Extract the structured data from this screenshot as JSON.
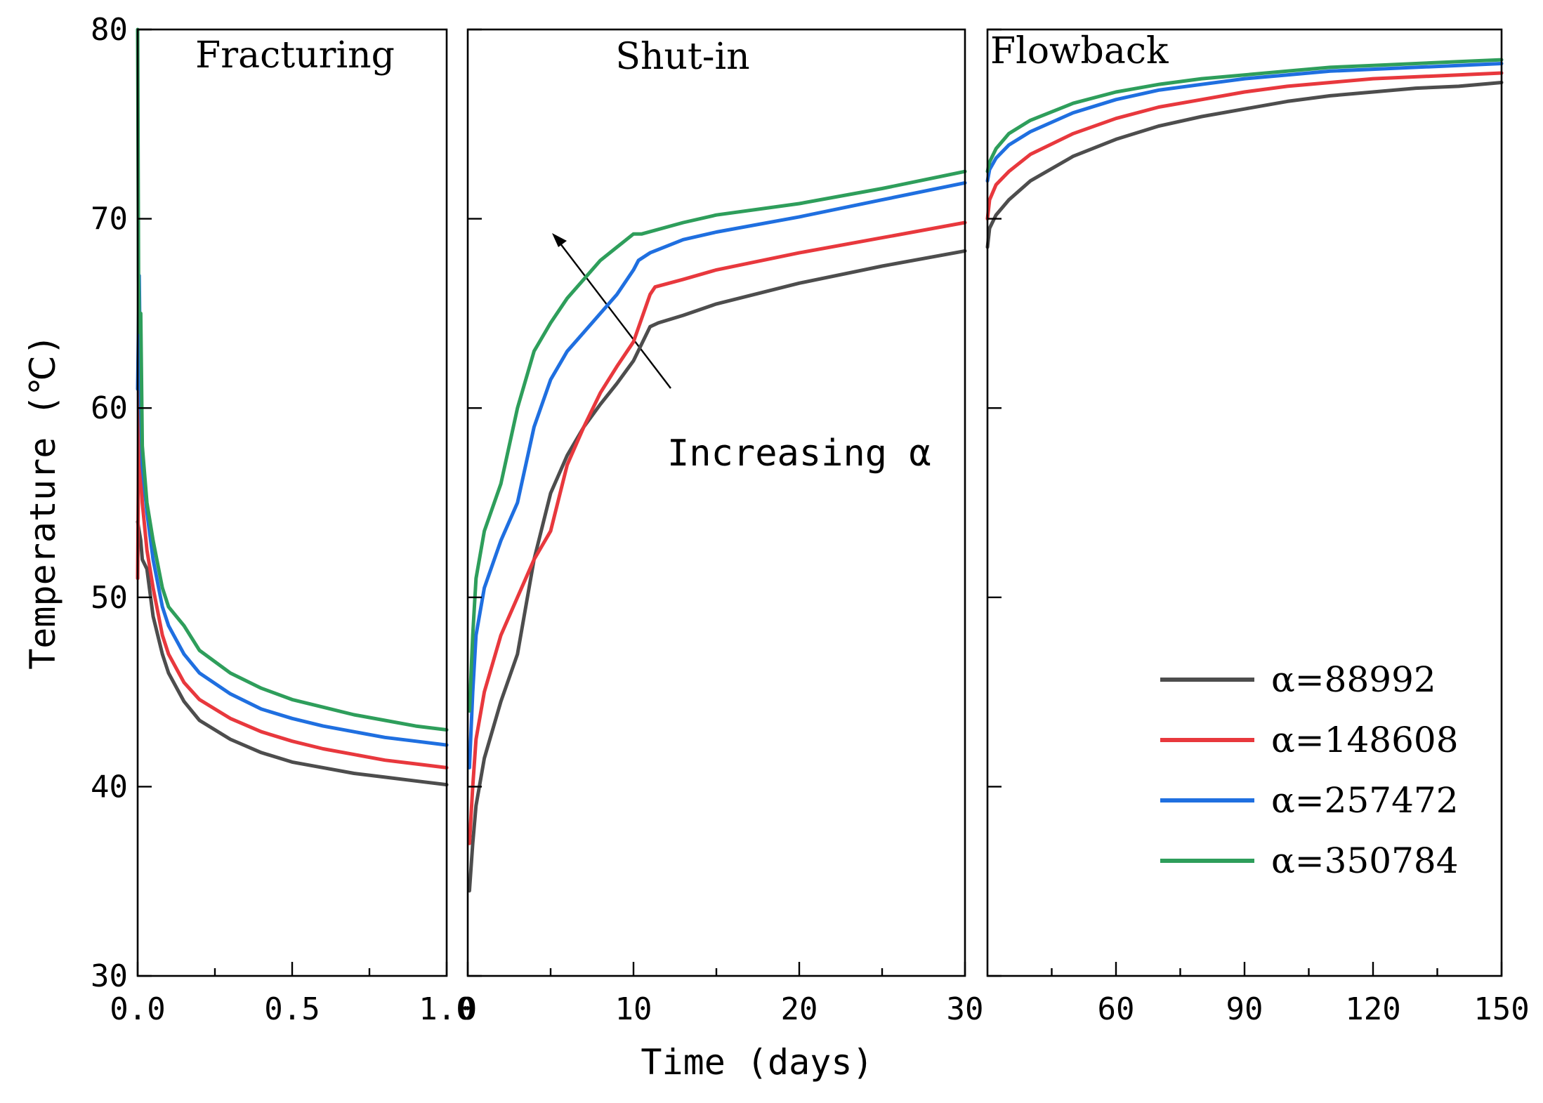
{
  "chart_data": {
    "type": "line",
    "ylabel": "Temperature (℃)",
    "xlabel": "Time (days)",
    "ylim": [
      30,
      80
    ],
    "yticks": [
      "30",
      "40",
      "50",
      "60",
      "70",
      "80"
    ],
    "annotation": "Increasing α",
    "colors": {
      "α=88992": "#4d4d4d",
      "α=148608": "#e8383d",
      "α=257472": "#1f6fe0",
      "α=350784": "#2e9e5b"
    },
    "panels": [
      {
        "title": "Fracturing",
        "xlim": [
          0,
          1
        ],
        "xticks": [
          "0.0",
          "0.5",
          "1.0"
        ],
        "series": [
          {
            "name": "α=88992",
            "x": [
              0,
              0.01,
              0.015,
              0.03,
              0.05,
              0.08,
              0.1,
              0.15,
              0.2,
              0.3,
              0.4,
              0.5,
              0.6,
              0.7,
              0.8,
              0.9,
              1.0
            ],
            "y": [
              54,
              53,
              52,
              51.5,
              49,
              47,
              46,
              44.5,
              43.5,
              42.5,
              41.8,
              41.3,
              41.0,
              40.7,
              40.5,
              40.3,
              40.1
            ]
          },
          {
            "name": "α=148608",
            "x": [
              0,
              0.005,
              0.01,
              0.015,
              0.03,
              0.05,
              0.08,
              0.1,
              0.15,
              0.2,
              0.3,
              0.4,
              0.5,
              0.6,
              0.7,
              0.8,
              0.9,
              1.0
            ],
            "y": [
              51,
              61.5,
              57,
              55,
              52.5,
              50.5,
              48,
              47,
              45.5,
              44.6,
              43.6,
              42.9,
              42.4,
              42.0,
              41.7,
              41.4,
              41.2,
              41.0
            ]
          },
          {
            "name": "α=257472",
            "x": [
              0,
              0.005,
              0.01,
              0.015,
              0.03,
              0.05,
              0.08,
              0.1,
              0.15,
              0.2,
              0.3,
              0.4,
              0.5,
              0.6,
              0.7,
              0.8,
              0.9,
              1.0
            ],
            "y": [
              61,
              67,
              60,
              57,
              54.5,
              52,
              49.5,
              48.5,
              47,
              46,
              44.9,
              44.1,
              43.6,
              43.2,
              42.9,
              42.6,
              42.4,
              42.2
            ]
          },
          {
            "name": "α=350784",
            "x": [
              0,
              0.003,
              0.006,
              0.01,
              0.015,
              0.03,
              0.05,
              0.08,
              0.1,
              0.15,
              0.2,
              0.3,
              0.4,
              0.5,
              0.6,
              0.7,
              0.8,
              0.9,
              1.0
            ],
            "y": [
              80,
              67,
              64,
              65,
              58,
              55,
              53,
              50.5,
              49.5,
              48.5,
              47.2,
              46,
              45.2,
              44.6,
              44.2,
              43.8,
              43.5,
              43.2,
              43.0
            ]
          }
        ]
      },
      {
        "title": "Shut-in",
        "xlim": [
          0,
          30
        ],
        "xticks": [
          "0",
          "10",
          "20",
          "30"
        ],
        "series": [
          {
            "name": "α=88992",
            "x": [
              0.1,
              0.3,
              0.5,
              1,
              2,
              3,
              4,
              5,
              6,
              7,
              8,
              9,
              10,
              11,
              11.5,
              13,
              15,
              20,
              25,
              30
            ],
            "y": [
              34.5,
              37,
              39,
              41.5,
              44.5,
              47,
              52,
              55.5,
              57.5,
              59,
              60.2,
              61.3,
              62.5,
              64.3,
              64.5,
              64.9,
              65.5,
              66.6,
              67.5,
              68.3
            ]
          },
          {
            "name": "α=148608",
            "x": [
              0.1,
              0.3,
              0.5,
              1,
              2,
              3,
              4,
              5,
              6,
              7,
              8,
              9,
              10,
              11,
              11.3,
              13,
              15,
              20,
              25,
              30
            ],
            "y": [
              37,
              40,
              42.5,
              45,
              48,
              50,
              52,
              53.5,
              57,
              59,
              60.8,
              62.2,
              63.5,
              66,
              66.4,
              66.8,
              67.3,
              68.2,
              69.0,
              69.8
            ]
          },
          {
            "name": "α=257472",
            "x": [
              0.1,
              0.3,
              0.5,
              1,
              2,
              3,
              4,
              5,
              6,
              7,
              8,
              9,
              10,
              10.3,
              11,
              13,
              15,
              20,
              25,
              30
            ],
            "y": [
              41,
              45,
              48,
              50.5,
              53,
              55,
              59,
              61.5,
              63,
              64,
              65,
              66,
              67.3,
              67.8,
              68.2,
              68.9,
              69.3,
              70.1,
              71.0,
              71.9
            ]
          },
          {
            "name": "α=350784",
            "x": [
              0.1,
              0.3,
              0.5,
              1,
              2,
              3,
              4,
              5,
              6,
              7,
              8,
              9,
              10,
              10.5,
              13,
              15,
              20,
              25,
              30
            ],
            "y": [
              44,
              48,
              51,
              53.5,
              56,
              60,
              63,
              64.5,
              65.8,
              66.8,
              67.8,
              68.5,
              69.2,
              69.2,
              69.8,
              70.2,
              70.8,
              71.6,
              72.5
            ]
          }
        ]
      },
      {
        "title": "Flowback",
        "xlim": [
          30,
          150
        ],
        "xticks": [
          "60",
          "90",
          "120",
          "150"
        ],
        "series": [
          {
            "name": "α=88992",
            "x": [
              30,
              30.5,
              32,
              35,
              40,
              50,
              60,
              70,
              80,
              90,
              100,
              110,
              120,
              130,
              140,
              150
            ],
            "y": [
              68.5,
              69.5,
              70.2,
              71,
              72,
              73.3,
              74.2,
              74.9,
              75.4,
              75.8,
              76.2,
              76.5,
              76.7,
              76.9,
              77.0,
              77.2
            ]
          },
          {
            "name": "α=148608",
            "x": [
              30,
              30.5,
              32,
              35,
              40,
              50,
              60,
              70,
              80,
              90,
              100,
              110,
              120,
              130,
              140,
              150
            ],
            "y": [
              70,
              71,
              71.8,
              72.5,
              73.4,
              74.5,
              75.3,
              75.9,
              76.3,
              76.7,
              77.0,
              77.2,
              77.4,
              77.5,
              77.6,
              77.7
            ]
          },
          {
            "name": "α=257472",
            "x": [
              30,
              30.5,
              32,
              35,
              40,
              50,
              60,
              70,
              80,
              90,
              100,
              110,
              120,
              130,
              140,
              150
            ],
            "y": [
              72,
              72.6,
              73.2,
              73.9,
              74.6,
              75.6,
              76.3,
              76.8,
              77.1,
              77.4,
              77.6,
              77.8,
              77.9,
              78.0,
              78.1,
              78.2
            ]
          },
          {
            "name": "α=350784",
            "x": [
              30,
              30.5,
              32,
              35,
              40,
              50,
              60,
              70,
              80,
              90,
              100,
              110,
              120,
              130,
              140,
              150
            ],
            "y": [
              72.5,
              73,
              73.7,
              74.5,
              75.2,
              76.1,
              76.7,
              77.1,
              77.4,
              77.6,
              77.8,
              78.0,
              78.1,
              78.2,
              78.3,
              78.4
            ]
          }
        ]
      }
    ]
  }
}
